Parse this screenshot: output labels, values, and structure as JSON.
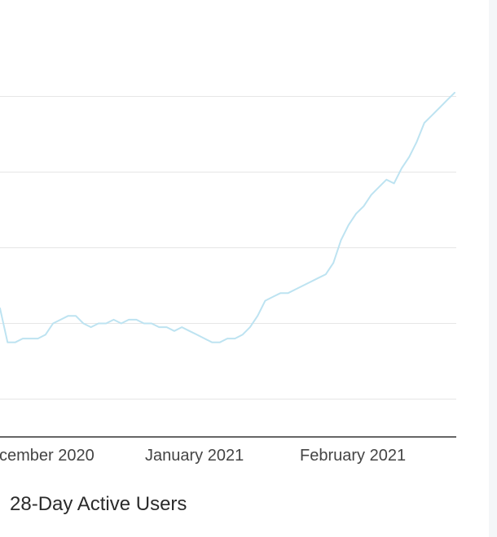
{
  "chart_data": {
    "type": "line",
    "title": "",
    "xlabel": "",
    "ylabel": "",
    "x_tick_labels": [
      "cember 2020",
      "January 2021",
      "February 2021"
    ],
    "legend": "28-Day Active Users",
    "series": [
      {
        "name": "28-Day Active Users",
        "color": "#bde3f1",
        "points": [
          [
            0,
            4.4
          ],
          [
            1,
            3.5
          ],
          [
            2,
            3.5
          ],
          [
            3,
            3.6
          ],
          [
            4,
            3.6
          ],
          [
            5,
            3.6
          ],
          [
            6,
            3.7
          ],
          [
            7,
            4.0
          ],
          [
            8,
            4.1
          ],
          [
            9,
            4.2
          ],
          [
            10,
            4.2
          ],
          [
            11,
            4.0
          ],
          [
            12,
            3.9
          ],
          [
            13,
            4.0
          ],
          [
            14,
            4.0
          ],
          [
            15,
            4.1
          ],
          [
            16,
            4.0
          ],
          [
            17,
            4.1
          ],
          [
            18,
            4.1
          ],
          [
            19,
            4.0
          ],
          [
            20,
            4.0
          ],
          [
            21,
            3.9
          ],
          [
            22,
            3.9
          ],
          [
            23,
            3.8
          ],
          [
            24,
            3.9
          ],
          [
            25,
            3.8
          ],
          [
            26,
            3.7
          ],
          [
            27,
            3.6
          ],
          [
            28,
            3.5
          ],
          [
            29,
            3.5
          ],
          [
            30,
            3.6
          ],
          [
            31,
            3.6
          ],
          [
            32,
            3.7
          ],
          [
            33,
            3.9
          ],
          [
            34,
            4.2
          ],
          [
            35,
            4.6
          ],
          [
            36,
            4.7
          ],
          [
            37,
            4.8
          ],
          [
            38,
            4.8
          ],
          [
            39,
            4.9
          ],
          [
            40,
            5.0
          ],
          [
            41,
            5.1
          ],
          [
            42,
            5.2
          ],
          [
            43,
            5.3
          ],
          [
            44,
            5.6
          ],
          [
            45,
            6.2
          ],
          [
            46,
            6.6
          ],
          [
            47,
            6.9
          ],
          [
            48,
            7.1
          ],
          [
            49,
            7.4
          ],
          [
            50,
            7.6
          ],
          [
            51,
            7.8
          ],
          [
            52,
            7.7
          ],
          [
            53,
            8.1
          ],
          [
            54,
            8.4
          ],
          [
            55,
            8.8
          ],
          [
            56,
            9.3
          ],
          [
            57,
            9.5
          ],
          [
            58,
            9.7
          ],
          [
            59,
            9.9
          ],
          [
            60,
            10.1
          ]
        ]
      }
    ],
    "y_gridlines": [
      2,
      4,
      6,
      8,
      10
    ],
    "xlim": [
      0,
      60
    ],
    "ylim": [
      1,
      11
    ],
    "grid": true,
    "legend_position": "bottom-left"
  }
}
